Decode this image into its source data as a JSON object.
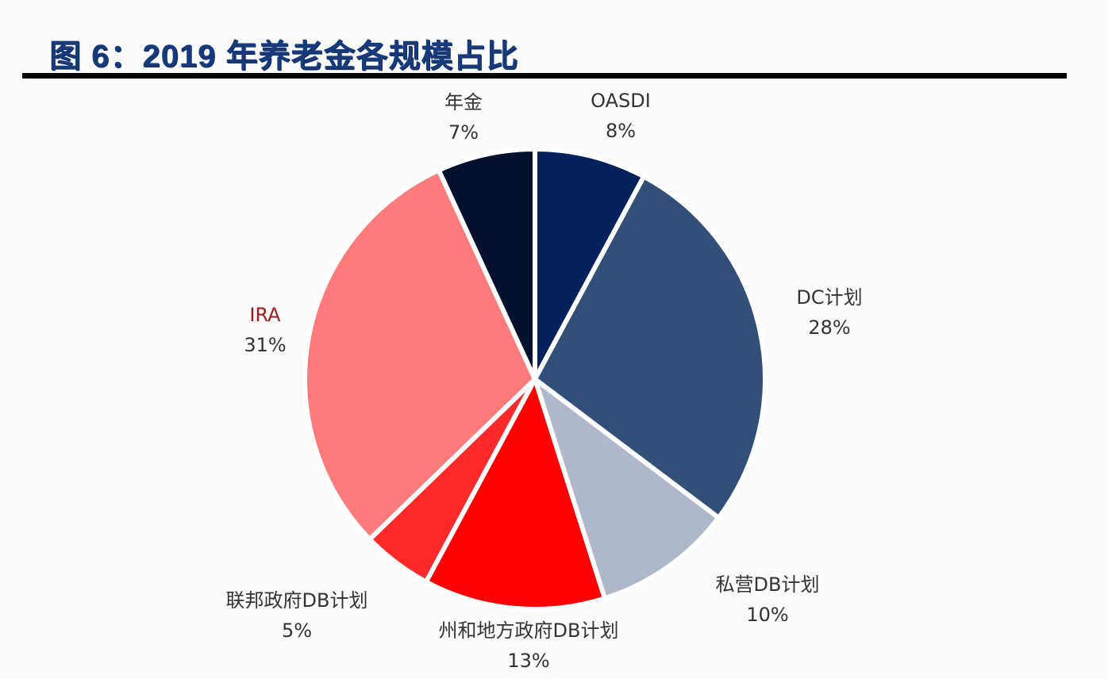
{
  "header": {
    "title": "图 6：2019 年养老金各规模占比"
  },
  "chart_data": {
    "type": "pie",
    "title": "图 6：2019 年养老金各规模占比",
    "start_angle_deg": 0,
    "direction": "clockwise",
    "legend": "none (data labels outside slices)",
    "slices": [
      {
        "label": "OASDI",
        "value": 8,
        "pct_label": "8%",
        "color": "#03215a"
      },
      {
        "label": "DC计划",
        "value": 28,
        "pct_label": "28%",
        "color": "#324f78"
      },
      {
        "label": "私营DB计划",
        "value": 10,
        "pct_label": "10%",
        "color": "#aeb8ca"
      },
      {
        "label": "州和地方政府DB计划",
        "value": 13,
        "pct_label": "13%",
        "color": "#fe0000"
      },
      {
        "label": "联邦政府DB计划",
        "value": 5,
        "pct_label": "5%",
        "color": "#fe2a2a"
      },
      {
        "label": "IRA",
        "value": 31,
        "pct_label": "31%",
        "color": "#fe7b7b"
      },
      {
        "label": "年金",
        "value": 7,
        "pct_label": "7%",
        "color": "#04122f"
      }
    ]
  },
  "labels": {
    "oasdi": {
      "name": "OASDI",
      "pct": "8%"
    },
    "dc": {
      "name": "DC计划",
      "pct": "28%"
    },
    "private_db": {
      "name": "私营DB计划",
      "pct": "10%"
    },
    "state_db": {
      "name": "州和地方政府DB计划",
      "pct": "13%"
    },
    "federal_db": {
      "name": "联邦政府DB计划",
      "pct": "5%"
    },
    "ira": {
      "name": "IRA",
      "pct": "31%"
    },
    "annuity": {
      "name": "年金",
      "pct": "7%"
    }
  }
}
